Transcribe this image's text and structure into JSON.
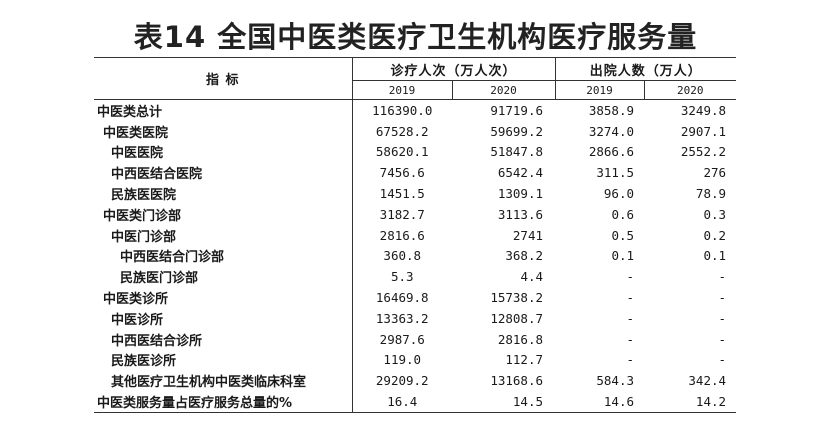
{
  "title": "表14  全国中医类医疗卫生机构医疗服务量",
  "header": {
    "indicator": "指 标",
    "group_visits": "诊疗人次（万人次）",
    "group_discharged": "出院人数（万人）",
    "years": [
      "2019",
      "2020",
      "2019",
      "2020"
    ]
  },
  "rows": [
    {
      "name": "中医类总计",
      "indent": 0,
      "v": [
        "116390.0",
        "91719.6",
        "3858.9",
        "3249.8"
      ]
    },
    {
      "name": "中医类医院",
      "indent": 1,
      "v": [
        "67528.2",
        "59699.2",
        "3274.0",
        "2907.1"
      ]
    },
    {
      "name": "中医医院",
      "indent": 2,
      "v": [
        "58620.1",
        "51847.8",
        "2866.6",
        "2552.2"
      ]
    },
    {
      "name": "中西医结合医院",
      "indent": 2,
      "v": [
        "7456.6",
        "6542.4",
        "311.5",
        "276"
      ]
    },
    {
      "name": "民族医医院",
      "indent": 2,
      "v": [
        "1451.5",
        "1309.1",
        "96.0",
        "78.9"
      ]
    },
    {
      "name": "中医类门诊部",
      "indent": 1,
      "v": [
        "3182.7",
        "3113.6",
        "0.6",
        "0.3"
      ]
    },
    {
      "name": "中医门诊部",
      "indent": 2,
      "v": [
        "2816.6",
        "2741",
        "0.5",
        "0.2"
      ]
    },
    {
      "name": "中西医结合门诊部",
      "indent": 3,
      "v": [
        "360.8",
        "368.2",
        "0.1",
        "0.1"
      ]
    },
    {
      "name": "民族医门诊部",
      "indent": 3,
      "v": [
        "5.3",
        "4.4",
        "-",
        "-"
      ]
    },
    {
      "name": "中医类诊所",
      "indent": 1,
      "v": [
        "16469.8",
        "15738.2",
        "-",
        "-"
      ]
    },
    {
      "name": "中医诊所",
      "indent": 2,
      "v": [
        "13363.2",
        "12808.7",
        "-",
        "-"
      ]
    },
    {
      "name": "中西医结合诊所",
      "indent": 2,
      "v": [
        "2987.6",
        "2816.8",
        "-",
        "-"
      ]
    },
    {
      "name": "民族医诊所",
      "indent": 2,
      "v": [
        "119.0",
        "112.7",
        "-",
        "-"
      ]
    },
    {
      "name": "其他医疗卫生机构中医类临床科室",
      "indent": 2,
      "v": [
        "29209.2",
        "13168.6",
        "584.3",
        "342.4"
      ]
    },
    {
      "name": "中医类服务量占医疗服务总量的%",
      "indent": 0,
      "v": [
        "16.4",
        "14.5",
        "14.6",
        "14.2"
      ]
    }
  ]
}
